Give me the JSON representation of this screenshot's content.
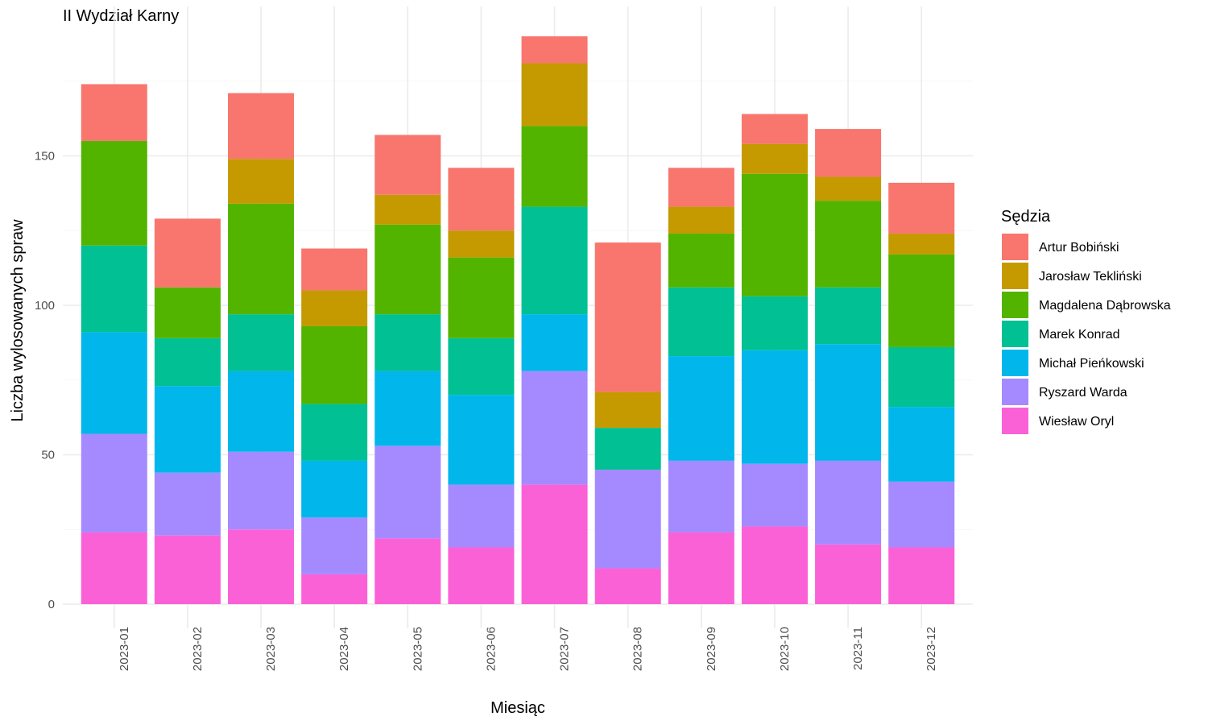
{
  "chart_data": {
    "type": "bar",
    "stacked": true,
    "title": "II Wydział Karny",
    "xlabel": "Miesiąc",
    "ylabel": "Liczba wylosowanych spraw",
    "ylim": [
      0,
      200
    ],
    "yticks": [
      0,
      50,
      100,
      150
    ],
    "grid": true,
    "legend_position": "right",
    "legend_title": "Sędzia",
    "categories": [
      "2023-01",
      "2023-02",
      "2023-03",
      "2023-04",
      "2023-05",
      "2023-06",
      "2023-07",
      "2023-08",
      "2023-09",
      "2023-10",
      "2023-11",
      "2023-12"
    ],
    "series": [
      {
        "name": "Artur Bobiński",
        "color": "#F8766D",
        "values": [
          19,
          23,
          22,
          14,
          20,
          21,
          9,
          50,
          13,
          10,
          16,
          17
        ]
      },
      {
        "name": "Jarosław Tekliński",
        "color": "#C49A00",
        "values": [
          0,
          0,
          15,
          12,
          10,
          9,
          21,
          12,
          9,
          10,
          8,
          7
        ]
      },
      {
        "name": "Magdalena Dąbrowska",
        "color": "#53B400",
        "values": [
          35,
          17,
          37,
          26,
          30,
          27,
          27,
          0,
          18,
          41,
          29,
          31
        ]
      },
      {
        "name": "Marek Konrad",
        "color": "#00C094",
        "values": [
          29,
          16,
          19,
          19,
          19,
          19,
          36,
          14,
          23,
          18,
          19,
          20
        ]
      },
      {
        "name": "Michał Pieńkowski",
        "color": "#00B6EB",
        "values": [
          34,
          29,
          27,
          19,
          25,
          30,
          19,
          0,
          35,
          38,
          39,
          25
        ]
      },
      {
        "name": "Ryszard Warda",
        "color": "#A58AFF",
        "values": [
          33,
          21,
          26,
          19,
          31,
          21,
          38,
          33,
          24,
          21,
          28,
          22
        ]
      },
      {
        "name": "Wiesław Oryl",
        "color": "#FB61D7",
        "values": [
          24,
          23,
          25,
          10,
          22,
          19,
          40,
          12,
          24,
          26,
          20,
          19
        ]
      }
    ]
  }
}
